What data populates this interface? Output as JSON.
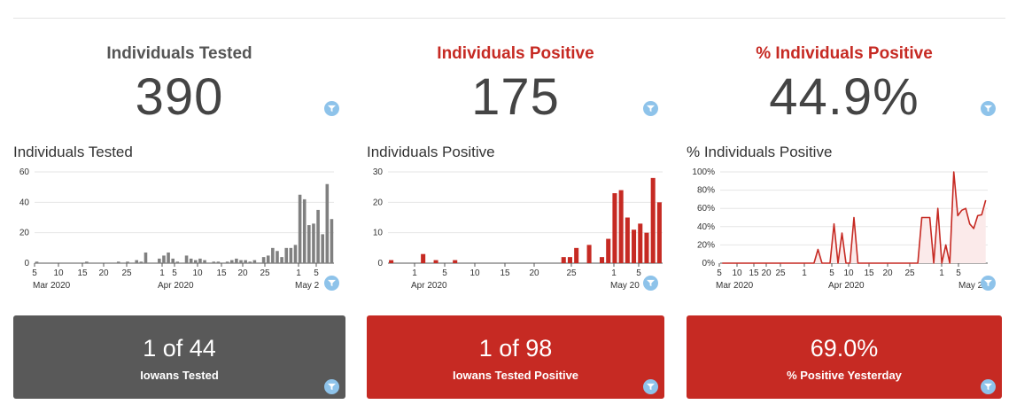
{
  "kpis": [
    {
      "title": "Individuals Tested",
      "value": "390",
      "title_color": "#555555"
    },
    {
      "title": "Individuals Positive",
      "value": "175",
      "title_color": "#c62a23"
    },
    {
      "title": "% Individuals Positive",
      "value": "44.9%",
      "title_color": "#c62a23"
    }
  ],
  "cards": [
    {
      "big": "1 of 44",
      "small": "Iowans Tested",
      "color": "#595959"
    },
    {
      "big": "1 of 98",
      "small": "Iowans Tested Positive",
      "color": "#c62a23"
    },
    {
      "big": "69.0%",
      "small": "% Positive Yesterday",
      "color": "#c62a23"
    }
  ],
  "icons": {
    "filter": "filter-icon"
  },
  "chart_data": [
    {
      "type": "bar",
      "title": "Individuals Tested",
      "ylim": [
        0,
        60
      ],
      "yticks": [
        "0",
        "20",
        "40",
        "60"
      ],
      "xticks": [
        "5",
        "10",
        "15",
        "20",
        "25",
        "1",
        "5",
        "10",
        "15",
        "20",
        "25",
        "1",
        "5"
      ],
      "xgroups": [
        "Mar 2020",
        "Apr 2020",
        "May 2"
      ],
      "color": "#808080",
      "values": [
        1,
        0,
        0,
        0,
        0,
        0,
        0,
        0,
        0,
        0,
        0,
        1,
        0,
        0,
        0,
        0,
        0,
        0,
        1,
        0,
        1,
        0,
        2,
        1,
        7,
        0,
        0,
        3,
        5,
        7,
        3,
        1,
        0,
        5,
        3,
        2,
        3,
        2,
        0,
        1,
        1,
        0,
        1,
        2,
        3,
        2,
        2,
        1,
        2,
        0,
        4,
        5,
        10,
        8,
        4,
        10,
        10,
        12,
        45,
        42,
        25,
        26,
        35,
        19,
        52,
        29
      ]
    },
    {
      "type": "bar",
      "title": "Individuals Positive",
      "ylim": [
        0,
        30
      ],
      "yticks": [
        "0",
        "10",
        "20",
        "30"
      ],
      "xticks": [
        "1",
        "5",
        "10",
        "15",
        "20",
        "25",
        "1",
        "5"
      ],
      "xgroups": [
        "Apr 2020",
        "May 20"
      ],
      "color": "#c62a23",
      "values": [
        1,
        0,
        0,
        0,
        0,
        3,
        0,
        1,
        0,
        0,
        1,
        0,
        0,
        0,
        0,
        0,
        0,
        0,
        0,
        0,
        0,
        0,
        0,
        0,
        0,
        0,
        0,
        2,
        2,
        5,
        0,
        6,
        0,
        2,
        8,
        23,
        24,
        15,
        11,
        13,
        10,
        28,
        20
      ]
    },
    {
      "type": "area",
      "title": "% Individuals Positive",
      "ylim": [
        0,
        100
      ],
      "yticks": [
        "0%",
        "20%",
        "40%",
        "60%",
        "80%",
        "100%"
      ],
      "xticks": [
        "5",
        "10",
        "15",
        "20",
        "25",
        "1",
        "5",
        "10",
        "15",
        "20",
        "25",
        "1",
        "5"
      ],
      "xgroups": [
        "Mar 2020",
        "Apr 2020",
        "May 2"
      ],
      "color": "#c62a23",
      "values": [
        0,
        0,
        0,
        0,
        0,
        0,
        0,
        0,
        0,
        0,
        0,
        0,
        0,
        0,
        0,
        0,
        0,
        0,
        0,
        0,
        0,
        0,
        0,
        0,
        15,
        0,
        0,
        0,
        43,
        0,
        33,
        0,
        0,
        50,
        0,
        0,
        0,
        0,
        0,
        0,
        0,
        0,
        0,
        0,
        0,
        0,
        0,
        0,
        0,
        0,
        50,
        50,
        50,
        0,
        60,
        0,
        20,
        0,
        100,
        52,
        58,
        60,
        43,
        38,
        52,
        53,
        69
      ]
    }
  ]
}
